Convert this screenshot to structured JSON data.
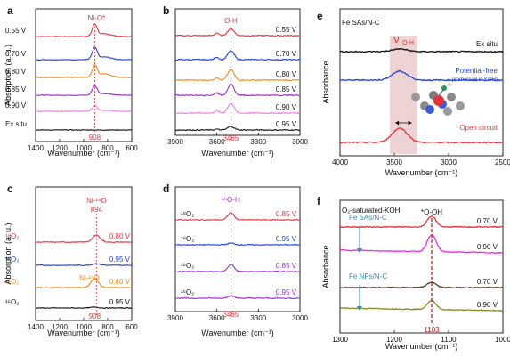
{
  "figure": {
    "panels": [
      {
        "id": "a",
        "letter": "a",
        "xlabel": "Wavenumber (cm⁻¹)",
        "ylabel": "Absorption (a. u.)",
        "xticks": [
          "1400",
          "1200",
          "1000",
          "800",
          "600"
        ],
        "peak_label": "Ni-O*",
        "marker_label": "908",
        "curves": [
          {
            "label": "0.55 V",
            "color": "#e8303a"
          },
          {
            "label": "0.70 V",
            "color": "#1f3fe0"
          },
          {
            "label": "0.80 V",
            "color": "#f08c1a"
          },
          {
            "label": "0.85 V",
            "color": "#9b2ad0"
          },
          {
            "label": "0.90 V",
            "color": "#f07ae8"
          },
          {
            "label": "Ex situ",
            "color": "#111111"
          }
        ]
      },
      {
        "id": "b",
        "letter": "b",
        "xlabel": "Wavenumber (cm⁻¹)",
        "xticks": [
          "3900",
          "3600",
          "3300",
          "3000"
        ],
        "peak_label": "O-H",
        "marker_label": "3465",
        "curves": [
          {
            "label": "0.55 V",
            "color": "#e8303a"
          },
          {
            "label": "0.70 V",
            "color": "#1f3fe0"
          },
          {
            "label": "0.80 V",
            "color": "#f08c1a"
          },
          {
            "label": "0.85 V",
            "color": "#9b2ad0"
          },
          {
            "label": "0.90 V",
            "color": "#f07ae8"
          },
          {
            "label": "0.95 V",
            "color": "#111111"
          }
        ]
      },
      {
        "id": "c",
        "letter": "c",
        "xlabel": "Wavenumber (cm⁻¹)",
        "ylabel": "Absorption (a. u.)",
        "xticks": [
          "1400",
          "1200",
          "1000",
          "800",
          "600"
        ],
        "peak_label_1": "Ni-¹⁸O",
        "peak_value_1": "894",
        "peak_label_2": "Ni-¹⁶O",
        "marker_label": "908",
        "curves": [
          {
            "gas": "¹⁸O₂",
            "label": "0.80 V",
            "color": "#e8303a"
          },
          {
            "gas": "¹⁸O₂",
            "label": "0.95 V",
            "color": "#1f3fe0"
          },
          {
            "gas": "¹⁶O₂",
            "label": "0.80 V",
            "color": "#f08c1a"
          },
          {
            "gas": "¹⁶O₂",
            "label": "0.95 V",
            "color": "#111111"
          }
        ]
      },
      {
        "id": "d",
        "letter": "d",
        "xlabel": "Wavenumber (cm⁻¹)",
        "xticks": [
          "3900",
          "3600",
          "3300",
          "3000"
        ],
        "peak_label": "¹⁶O-H",
        "marker_label": "3465",
        "curves": [
          {
            "gas": "¹⁸O₂",
            "label": "0.85 V",
            "color": "#e8303a"
          },
          {
            "gas": "¹⁸O₂",
            "label": "0.95 V",
            "color": "#1f3fe0"
          },
          {
            "gas": "¹⁶O₂",
            "label": "0.85 V",
            "color": "#9b2ad0"
          },
          {
            "gas": "¹⁶O₂",
            "label": "0.95 V",
            "color": "#9b2ad0"
          }
        ]
      },
      {
        "id": "e",
        "letter": "e",
        "title": "Fe SAs/N-C",
        "xlabel": "Wavenumber (cm⁻¹)",
        "ylabel": "Absorbance",
        "xticks": [
          "4000",
          "3500",
          "3000",
          "2500"
        ],
        "peak_label": "ν",
        "peak_sub": "O-H",
        "curves": [
          {
            "label": "Ex situ",
            "color": "#111111"
          },
          {
            "label": "Potential-free",
            "sublabel": "(immersed in KOH)",
            "color": "#1f3fe0"
          },
          {
            "label": "Open circuit",
            "color": "#e8303a"
          }
        ],
        "highlight_color": "#e8c8c8"
      },
      {
        "id": "f",
        "letter": "f",
        "title": "O₂-saturated-KOH",
        "xlabel": "Wavenumber (cm⁻¹)",
        "ylabel": "Absorbance",
        "xticks": [
          "1300",
          "1200",
          "1100",
          "1000"
        ],
        "peak_label": "*O-OH",
        "marker_label": "1103",
        "group_1": "Fe SAs/N-C",
        "group_2": "Fe NPs/N-C",
        "curves": [
          {
            "label": "0.70 V",
            "color": "#e8303a"
          },
          {
            "label": "0.90 V",
            "color": "#f028e8"
          },
          {
            "label": "0.70 V",
            "color": "#5a3a28"
          },
          {
            "label": "0.90 V",
            "color": "#8a8a20"
          }
        ]
      }
    ]
  },
  "chart_data": [
    {
      "type": "line",
      "panel": "a",
      "xlabel": "Wavenumber (cm⁻¹)",
      "ylabel": "Absorption (a. u.)",
      "xlim": [
        1400,
        600
      ],
      "series": [
        {
          "name": "0.55 V",
          "peak_x": 908
        },
        {
          "name": "0.70 V",
          "peak_x": 908
        },
        {
          "name": "0.80 V",
          "peak_x": 908
        },
        {
          "name": "0.85 V",
          "peak_x": 908
        },
        {
          "name": "0.90 V",
          "peak_x": 908
        },
        {
          "name": "Ex situ"
        }
      ],
      "annotations": [
        "Ni-O*",
        "908"
      ]
    },
    {
      "type": "line",
      "panel": "b",
      "xlabel": "Wavenumber (cm⁻¹)",
      "xlim": [
        4000,
        2800
      ],
      "series": [
        {
          "name": "0.55 V"
        },
        {
          "name": "0.70 V"
        },
        {
          "name": "0.80 V"
        },
        {
          "name": "0.85 V"
        },
        {
          "name": "0.90 V"
        },
        {
          "name": "0.95 V"
        }
      ],
      "annotations": [
        "O-H",
        "3465"
      ]
    },
    {
      "type": "line",
      "panel": "c",
      "xlabel": "Wavenumber (cm⁻¹)",
      "ylabel": "Absorption (a. u.)",
      "xlim": [
        1400,
        600
      ],
      "series": [
        {
          "name": "¹⁸O₂ 0.80 V"
        },
        {
          "name": "¹⁸O₂ 0.95 V"
        },
        {
          "name": "¹⁶O₂ 0.80 V"
        },
        {
          "name": "¹⁶O₂ 0.95 V"
        }
      ],
      "annotations": [
        "Ni-¹⁸O",
        "894",
        "Ni-¹⁶O",
        "908"
      ]
    },
    {
      "type": "line",
      "panel": "d",
      "xlabel": "Wavenumber (cm⁻¹)",
      "xlim": [
        4000,
        2800
      ],
      "series": [
        {
          "name": "¹⁸O₂ 0.85 V"
        },
        {
          "name": "¹⁸O₂ 0.95 V"
        },
        {
          "name": "¹⁶O₂ 0.85 V"
        },
        {
          "name": "¹⁶O₂ 0.95 V"
        }
      ],
      "annotations": [
        "¹⁶O-H",
        "3465"
      ]
    },
    {
      "type": "line",
      "panel": "e",
      "title": "Fe SAs/N-C",
      "xlabel": "Wavenumber (cm⁻¹)",
      "ylabel": "Absorbance",
      "xlim": [
        4000,
        2500
      ],
      "series": [
        {
          "name": "Ex situ"
        },
        {
          "name": "Potential-free"
        },
        {
          "name": "Open circuit"
        }
      ],
      "annotations": [
        "νO-H",
        "(immersed in KOH)"
      ]
    },
    {
      "type": "line",
      "panel": "f",
      "title": "O₂-saturated-KOH",
      "xlabel": "Wavenumber (cm⁻¹)",
      "ylabel": "Absorbance",
      "xlim": [
        1300,
        950
      ],
      "series": [
        {
          "name": "Fe SAs/N-C 0.70 V",
          "peak_x": 1103
        },
        {
          "name": "Fe SAs/N-C 0.90 V",
          "peak_x": 1103
        },
        {
          "name": "Fe NPs/N-C 0.70 V",
          "peak_x": 1103
        },
        {
          "name": "Fe NPs/N-C 0.90 V",
          "peak_x": 1103
        }
      ],
      "annotations": [
        "*O-OH",
        "1103"
      ]
    }
  ]
}
